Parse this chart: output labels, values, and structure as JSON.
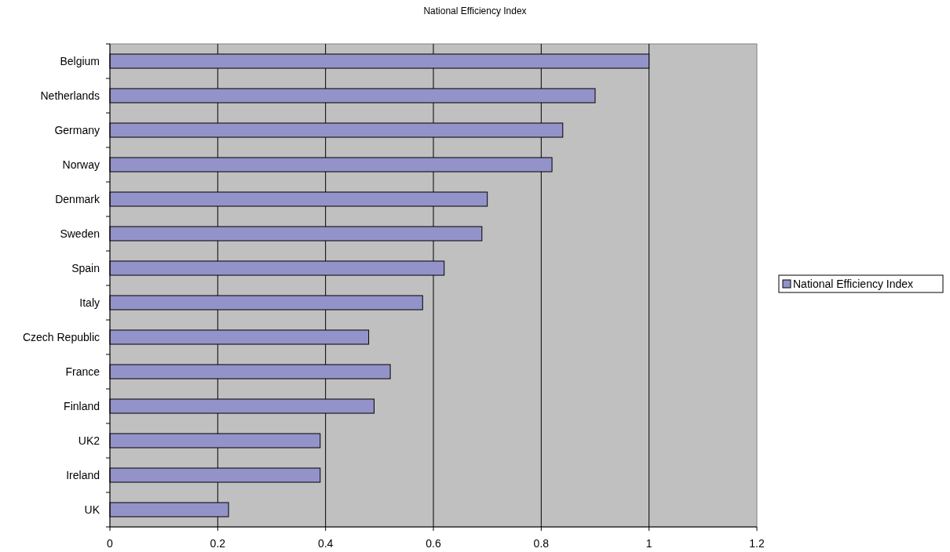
{
  "chart_data": {
    "type": "bar",
    "orientation": "horizontal",
    "title": "National Efficiency Index",
    "categories": [
      "Belgium",
      "Netherlands",
      "Germany",
      "Norway",
      "Denmark",
      "Sweden",
      "Spain",
      "Italy",
      "Czech Republic",
      "France",
      "Finland",
      "UK2",
      "Ireland",
      "UK"
    ],
    "series": [
      {
        "name": "National Efficiency Index",
        "color": "#9393c9",
        "values": [
          1.0,
          0.9,
          0.84,
          0.82,
          0.7,
          0.69,
          0.62,
          0.58,
          0.48,
          0.52,
          0.49,
          0.39,
          0.39,
          0.22
        ]
      }
    ],
    "xlim": [
      0,
      1.2
    ],
    "xticks": [
      0,
      0.2,
      0.4,
      0.6,
      0.8,
      1,
      1.2
    ],
    "grid": "x",
    "legend": "right"
  }
}
